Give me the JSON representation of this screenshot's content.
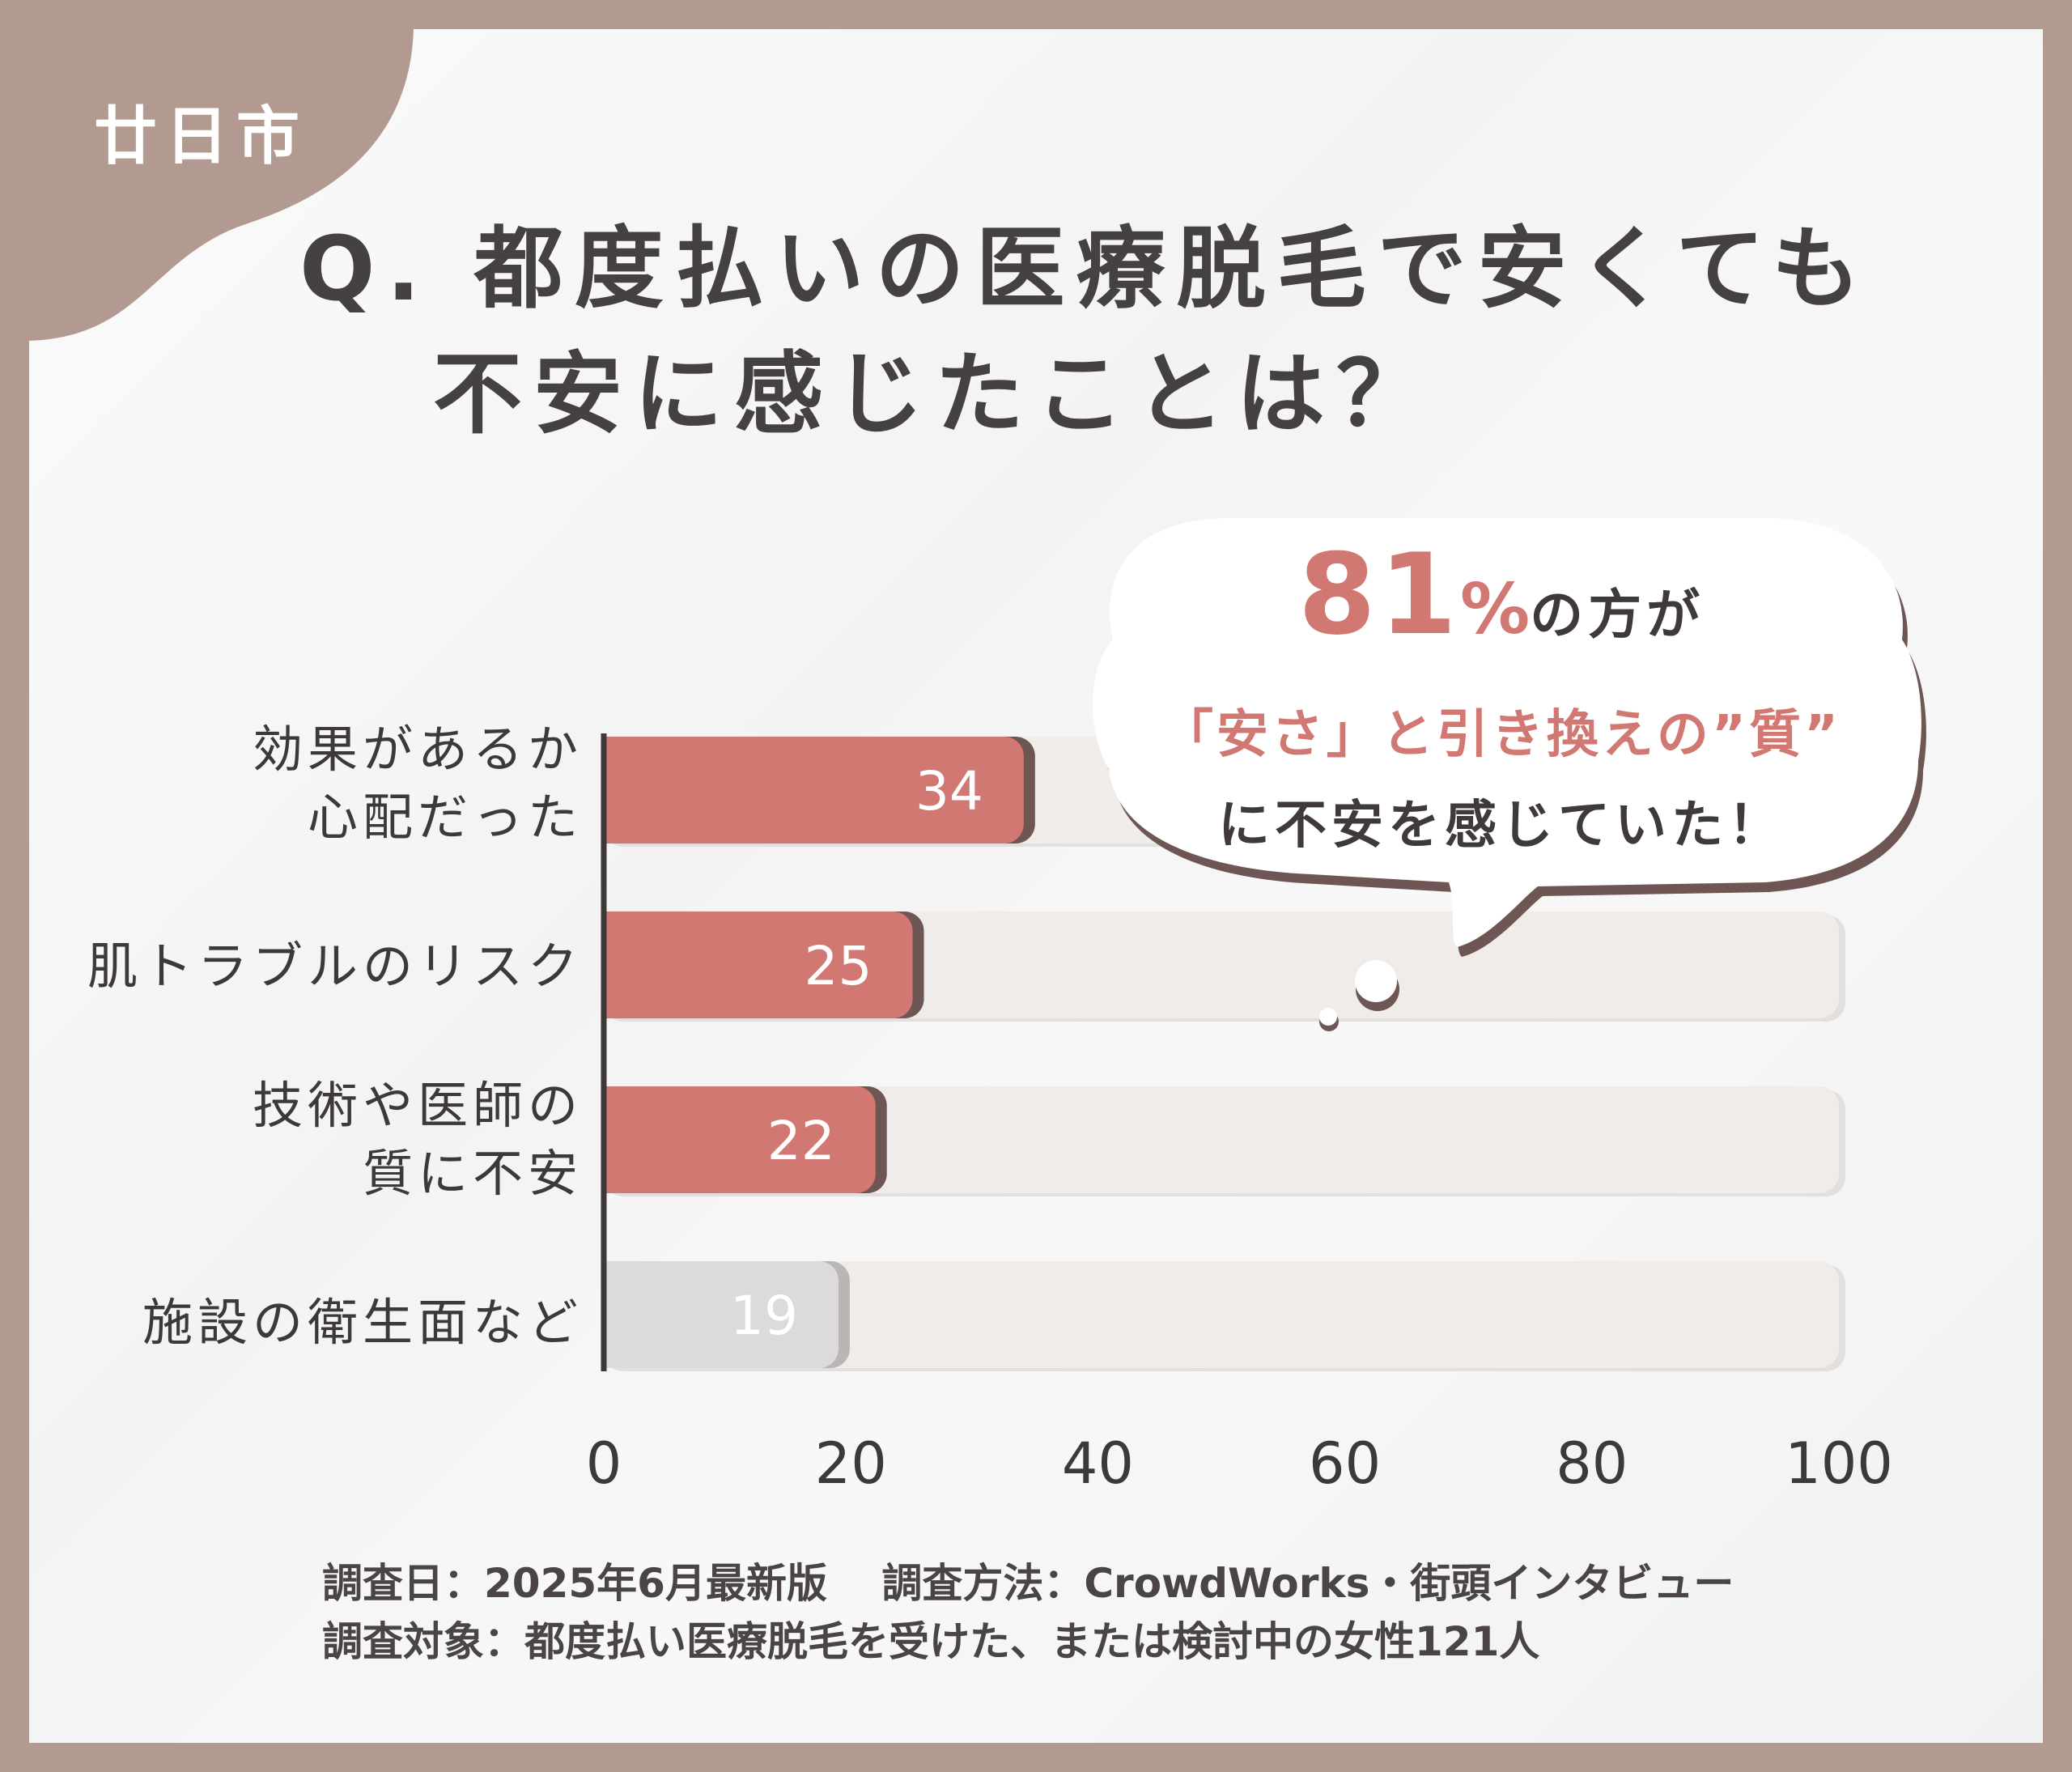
{
  "area_tag": "廿日市",
  "title": {
    "line1": "Q. 都度払いの医療脱毛で安くても",
    "line2": "不安に感じたことは？"
  },
  "callout": {
    "percent": "81",
    "percent_sign": "%",
    "suffix": "の方が",
    "line2": "「安さ」と引き換えの”質”",
    "line3": "に不安を感じていた！"
  },
  "chart_data": {
    "type": "bar",
    "orientation": "horizontal",
    "categories": [
      [
        "効果があるか",
        "心配だった"
      ],
      [
        "肌トラブルのリスク"
      ],
      [
        "技術や医師の",
        "質に不安"
      ],
      [
        "施設の衛生面など"
      ]
    ],
    "values": [
      34,
      25,
      22,
      19
    ],
    "xlim": [
      0,
      100
    ],
    "xticks": [
      0,
      20,
      40,
      60,
      80,
      100
    ],
    "colors": {
      "highlight": "#d27872",
      "highlight_shadow": "#6e5654",
      "muted": "#dcdadb",
      "muted_shadow": "#b9b6b5",
      "track": "#efecea",
      "axis": "#3d3938"
    },
    "highlighted": [
      true,
      true,
      true,
      false
    ]
  },
  "notes": [
    "調査日：2025年6月最新版　 調査方法：CrowdWorks・街頭インタビュー",
    "調査対象：都度払い医療脱毛を受けた、または検討中の女性121人"
  ],
  "colors": {
    "frame": "#b39a90",
    "title": "#454140",
    "accent": "#d27872"
  }
}
